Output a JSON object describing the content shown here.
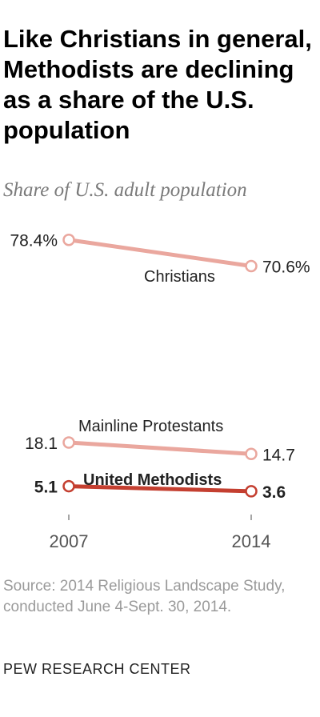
{
  "title": "Like Christians in general, Methodists are declining as a share of the U.S. population",
  "subtitle": "Share of U.S. adult population",
  "source": "Source: 2014 Religious Landscape Study, conducted June 4-Sept. 30, 2014.",
  "org": "PEW RESEARCH CENTER",
  "colors": {
    "christians": "#eaa79e",
    "mainline": "#eaa79e",
    "methodists": "#c43f30",
    "axis": "#888888"
  },
  "chart_data": {
    "type": "line",
    "x": [
      "2007",
      "2014"
    ],
    "series": [
      {
        "name": "Christians",
        "values": [
          78.4,
          70.6
        ],
        "labels": [
          "78.4%",
          "70.6%"
        ],
        "bold": false
      },
      {
        "name": "Mainline Protestants",
        "values": [
          18.1,
          14.7
        ],
        "labels": [
          "18.1",
          "14.7"
        ],
        "bold": false
      },
      {
        "name": "United Methodists",
        "values": [
          5.1,
          3.6
        ],
        "labels": [
          "5.1",
          "3.6"
        ],
        "bold": true
      }
    ],
    "ylim": [
      0,
      80
    ],
    "grid": false,
    "legend": "direct labels"
  }
}
